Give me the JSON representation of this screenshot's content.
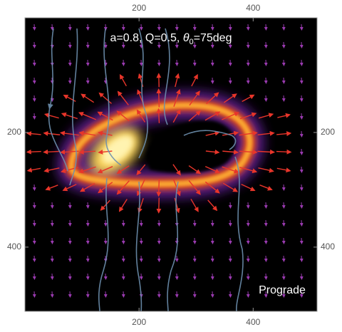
{
  "chart_data": {
    "type": "density",
    "title": {
      "prefix": "a=0.8, Q=0.5, ",
      "symbol": "θ",
      "subscript": "0",
      "suffix": "=75deg"
    },
    "annotation": "Prograde",
    "xlim": [
      0,
      512
    ],
    "ylim": [
      0,
      512
    ],
    "xticks": [
      200,
      400
    ],
    "yticks": [
      200,
      400
    ]
  }
}
